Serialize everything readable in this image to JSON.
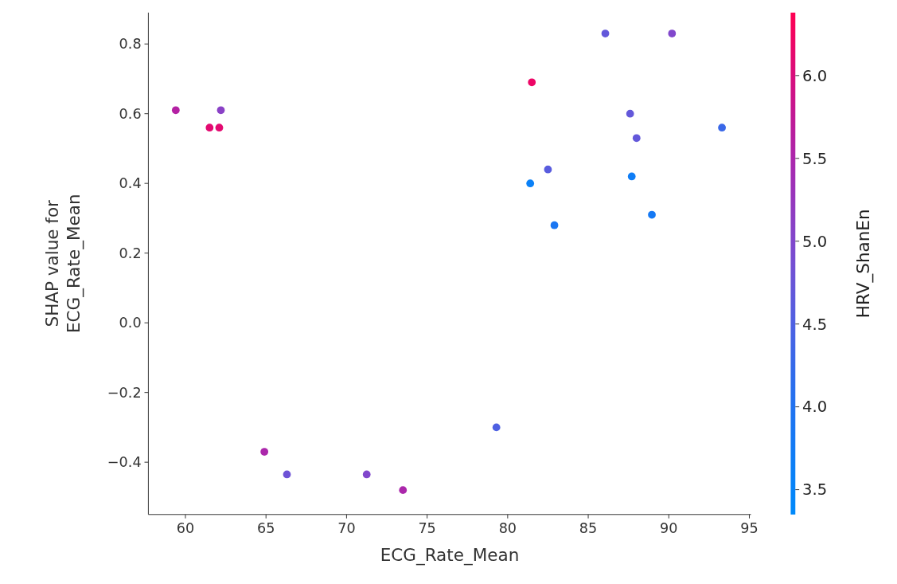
{
  "chart_data": {
    "type": "scatter",
    "xlabel": "ECG_Rate_Mean",
    "ylabel": "SHAP value for\nECG_Rate_Mean",
    "clabel": "HRV_ShanEn",
    "x": [
      59.4,
      61.5,
      62.1,
      62.2,
      64.9,
      66.3,
      71.25,
      73.5,
      79.3,
      81.5,
      81.4,
      82.5,
      82.9,
      86.06,
      87.6,
      87.7,
      88.0,
      88.95,
      90.2,
      93.3
    ],
    "values": [
      0.61,
      0.56,
      0.56,
      0.61,
      -0.37,
      -0.435,
      -0.435,
      -0.48,
      -0.3,
      0.69,
      0.4,
      0.44,
      0.28,
      0.83,
      0.6,
      0.42,
      0.53,
      0.31,
      0.83,
      0.56
    ],
    "cvalues": [
      5.6,
      6.1,
      6.1,
      5.1,
      5.5,
      4.8,
      5.0,
      5.5,
      4.5,
      6.2,
      3.6,
      4.6,
      3.9,
      4.7,
      4.7,
      3.7,
      4.7,
      3.8,
      5.0,
      4.3
    ],
    "xlim": [
      57.7,
      95.1
    ],
    "xticks": [
      60,
      65,
      70,
      75,
      80,
      85,
      90,
      95
    ],
    "ylim": [
      -0.55,
      0.89
    ],
    "yticks": [
      {
        "value": -0.4,
        "label": "−0.4"
      },
      {
        "value": -0.2,
        "label": "−0.2"
      },
      {
        "value": 0,
        "label": "0.0"
      },
      {
        "value": 0.2,
        "label": "0.2"
      },
      {
        "value": 0.4,
        "label": "0.4"
      },
      {
        "value": 0.6,
        "label": "0.6"
      },
      {
        "value": 0.8,
        "label": "0.8"
      }
    ],
    "clim": [
      3.35,
      6.38
    ],
    "cticks": [
      {
        "value": 3.5,
        "label": "3.5"
      },
      {
        "value": 4,
        "label": "4.0"
      },
      {
        "value": 4.5,
        "label": "4.5"
      },
      {
        "value": 5,
        "label": "5.0"
      },
      {
        "value": 5.5,
        "label": "5.5"
      },
      {
        "value": 6,
        "label": "6.0"
      }
    ],
    "marker": "circle"
  }
}
